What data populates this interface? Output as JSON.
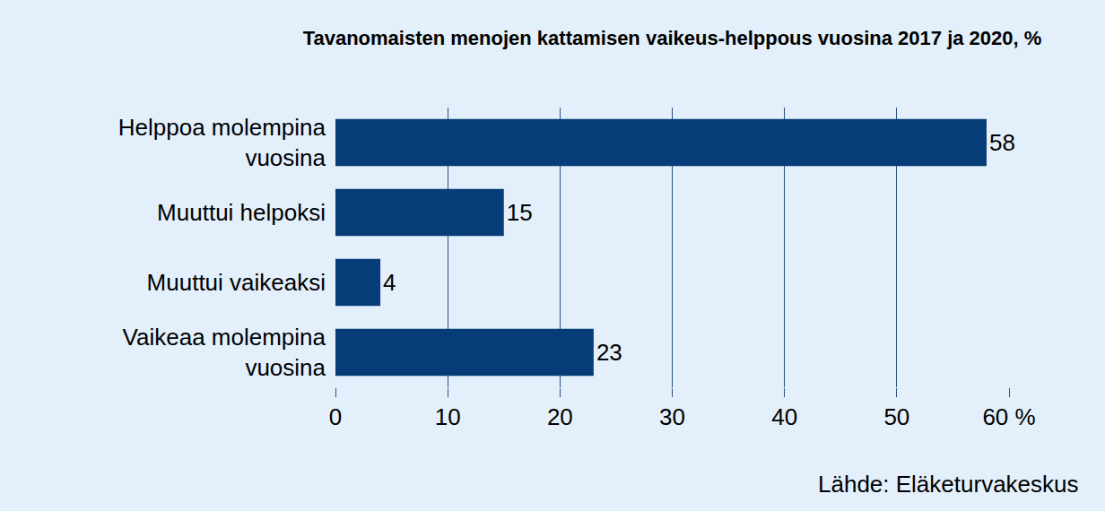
{
  "chart_data": {
    "type": "bar",
    "title": "Tavanomaisten menojen kattamisen vaikeus-helppous vuosina 2017 ja 2020, %",
    "categories": [
      "Helppoa molempina vuosina",
      "Muuttui helpoksi",
      "Muuttui vaikeaksi",
      "Vaikeaa molempina vuosina"
    ],
    "values": [
      58,
      15,
      4,
      23
    ],
    "color": "#063d78",
    "orientation": "horizontal",
    "data_labels": true,
    "grid": true,
    "xlim": [
      0,
      60
    ],
    "xticks": [
      0,
      10,
      20,
      30,
      40,
      50,
      {
        "value": 60,
        "label": "60 %"
      }
    ],
    "annotations": [
      "Lähde: Eläketurvakeskus"
    ]
  }
}
